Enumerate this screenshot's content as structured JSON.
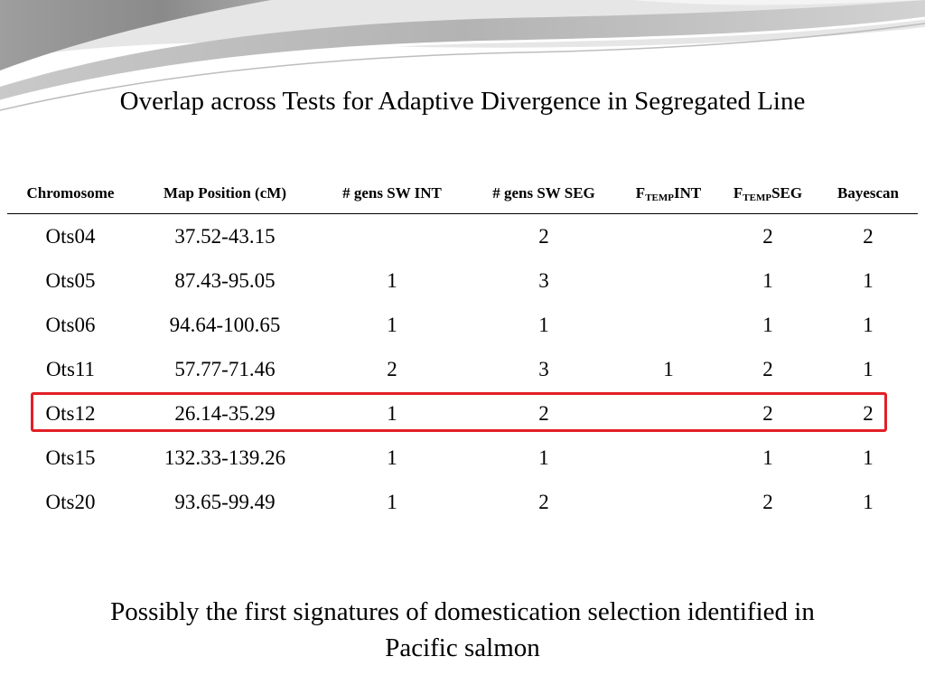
{
  "title": "Overlap across Tests for Adaptive Divergence in Segregated Line",
  "table": {
    "headers": {
      "chromosome": "Chromosome",
      "map_position": "Map Position (cM)",
      "gens_sw_int": "# gens SW INT",
      "gens_sw_seg": "# gens SW SEG",
      "ftemp_int_prefix": "F",
      "ftemp_int_sub": "TEMP",
      "ftemp_int_suffix": "INT",
      "ftemp_seg_prefix": "F",
      "ftemp_seg_sub": "TEMP",
      "ftemp_seg_suffix": "SEG",
      "bayescan": "Bayescan"
    },
    "rows": [
      {
        "chromosome": "Ots04",
        "map_position": "37.52-43.15",
        "gens_sw_int": "",
        "gens_sw_seg": "2",
        "ftemp_int": "",
        "ftemp_seg": "2",
        "bayescan": "2"
      },
      {
        "chromosome": "Ots05",
        "map_position": "87.43-95.05",
        "gens_sw_int": "1",
        "gens_sw_seg": "3",
        "ftemp_int": "",
        "ftemp_seg": "1",
        "bayescan": "1"
      },
      {
        "chromosome": "Ots06",
        "map_position": "94.64-100.65",
        "gens_sw_int": "1",
        "gens_sw_seg": "1",
        "ftemp_int": "",
        "ftemp_seg": "1",
        "bayescan": "1"
      },
      {
        "chromosome": "Ots11",
        "map_position": "57.77-71.46",
        "gens_sw_int": "2",
        "gens_sw_seg": "3",
        "ftemp_int": "1",
        "ftemp_seg": "2",
        "bayescan": "1"
      },
      {
        "chromosome": "Ots12",
        "map_position": "26.14-35.29",
        "gens_sw_int": "1",
        "gens_sw_seg": "2",
        "ftemp_int": "",
        "ftemp_seg": "2",
        "bayescan": "2"
      },
      {
        "chromosome": "Ots15",
        "map_position": "132.33-139.26",
        "gens_sw_int": "1",
        "gens_sw_seg": "1",
        "ftemp_int": "",
        "ftemp_seg": "1",
        "bayescan": "1"
      },
      {
        "chromosome": "Ots20",
        "map_position": "93.65-99.49",
        "gens_sw_int": "1",
        "gens_sw_seg": "2",
        "ftemp_int": "",
        "ftemp_seg": "2",
        "bayescan": "1"
      }
    ],
    "highlighted_row": "Ots12",
    "highlight_color": "#e21f26"
  },
  "conclusion_line1": "Possibly the first signatures of domestication selection identified in",
  "conclusion_line2": "Pacific salmon"
}
